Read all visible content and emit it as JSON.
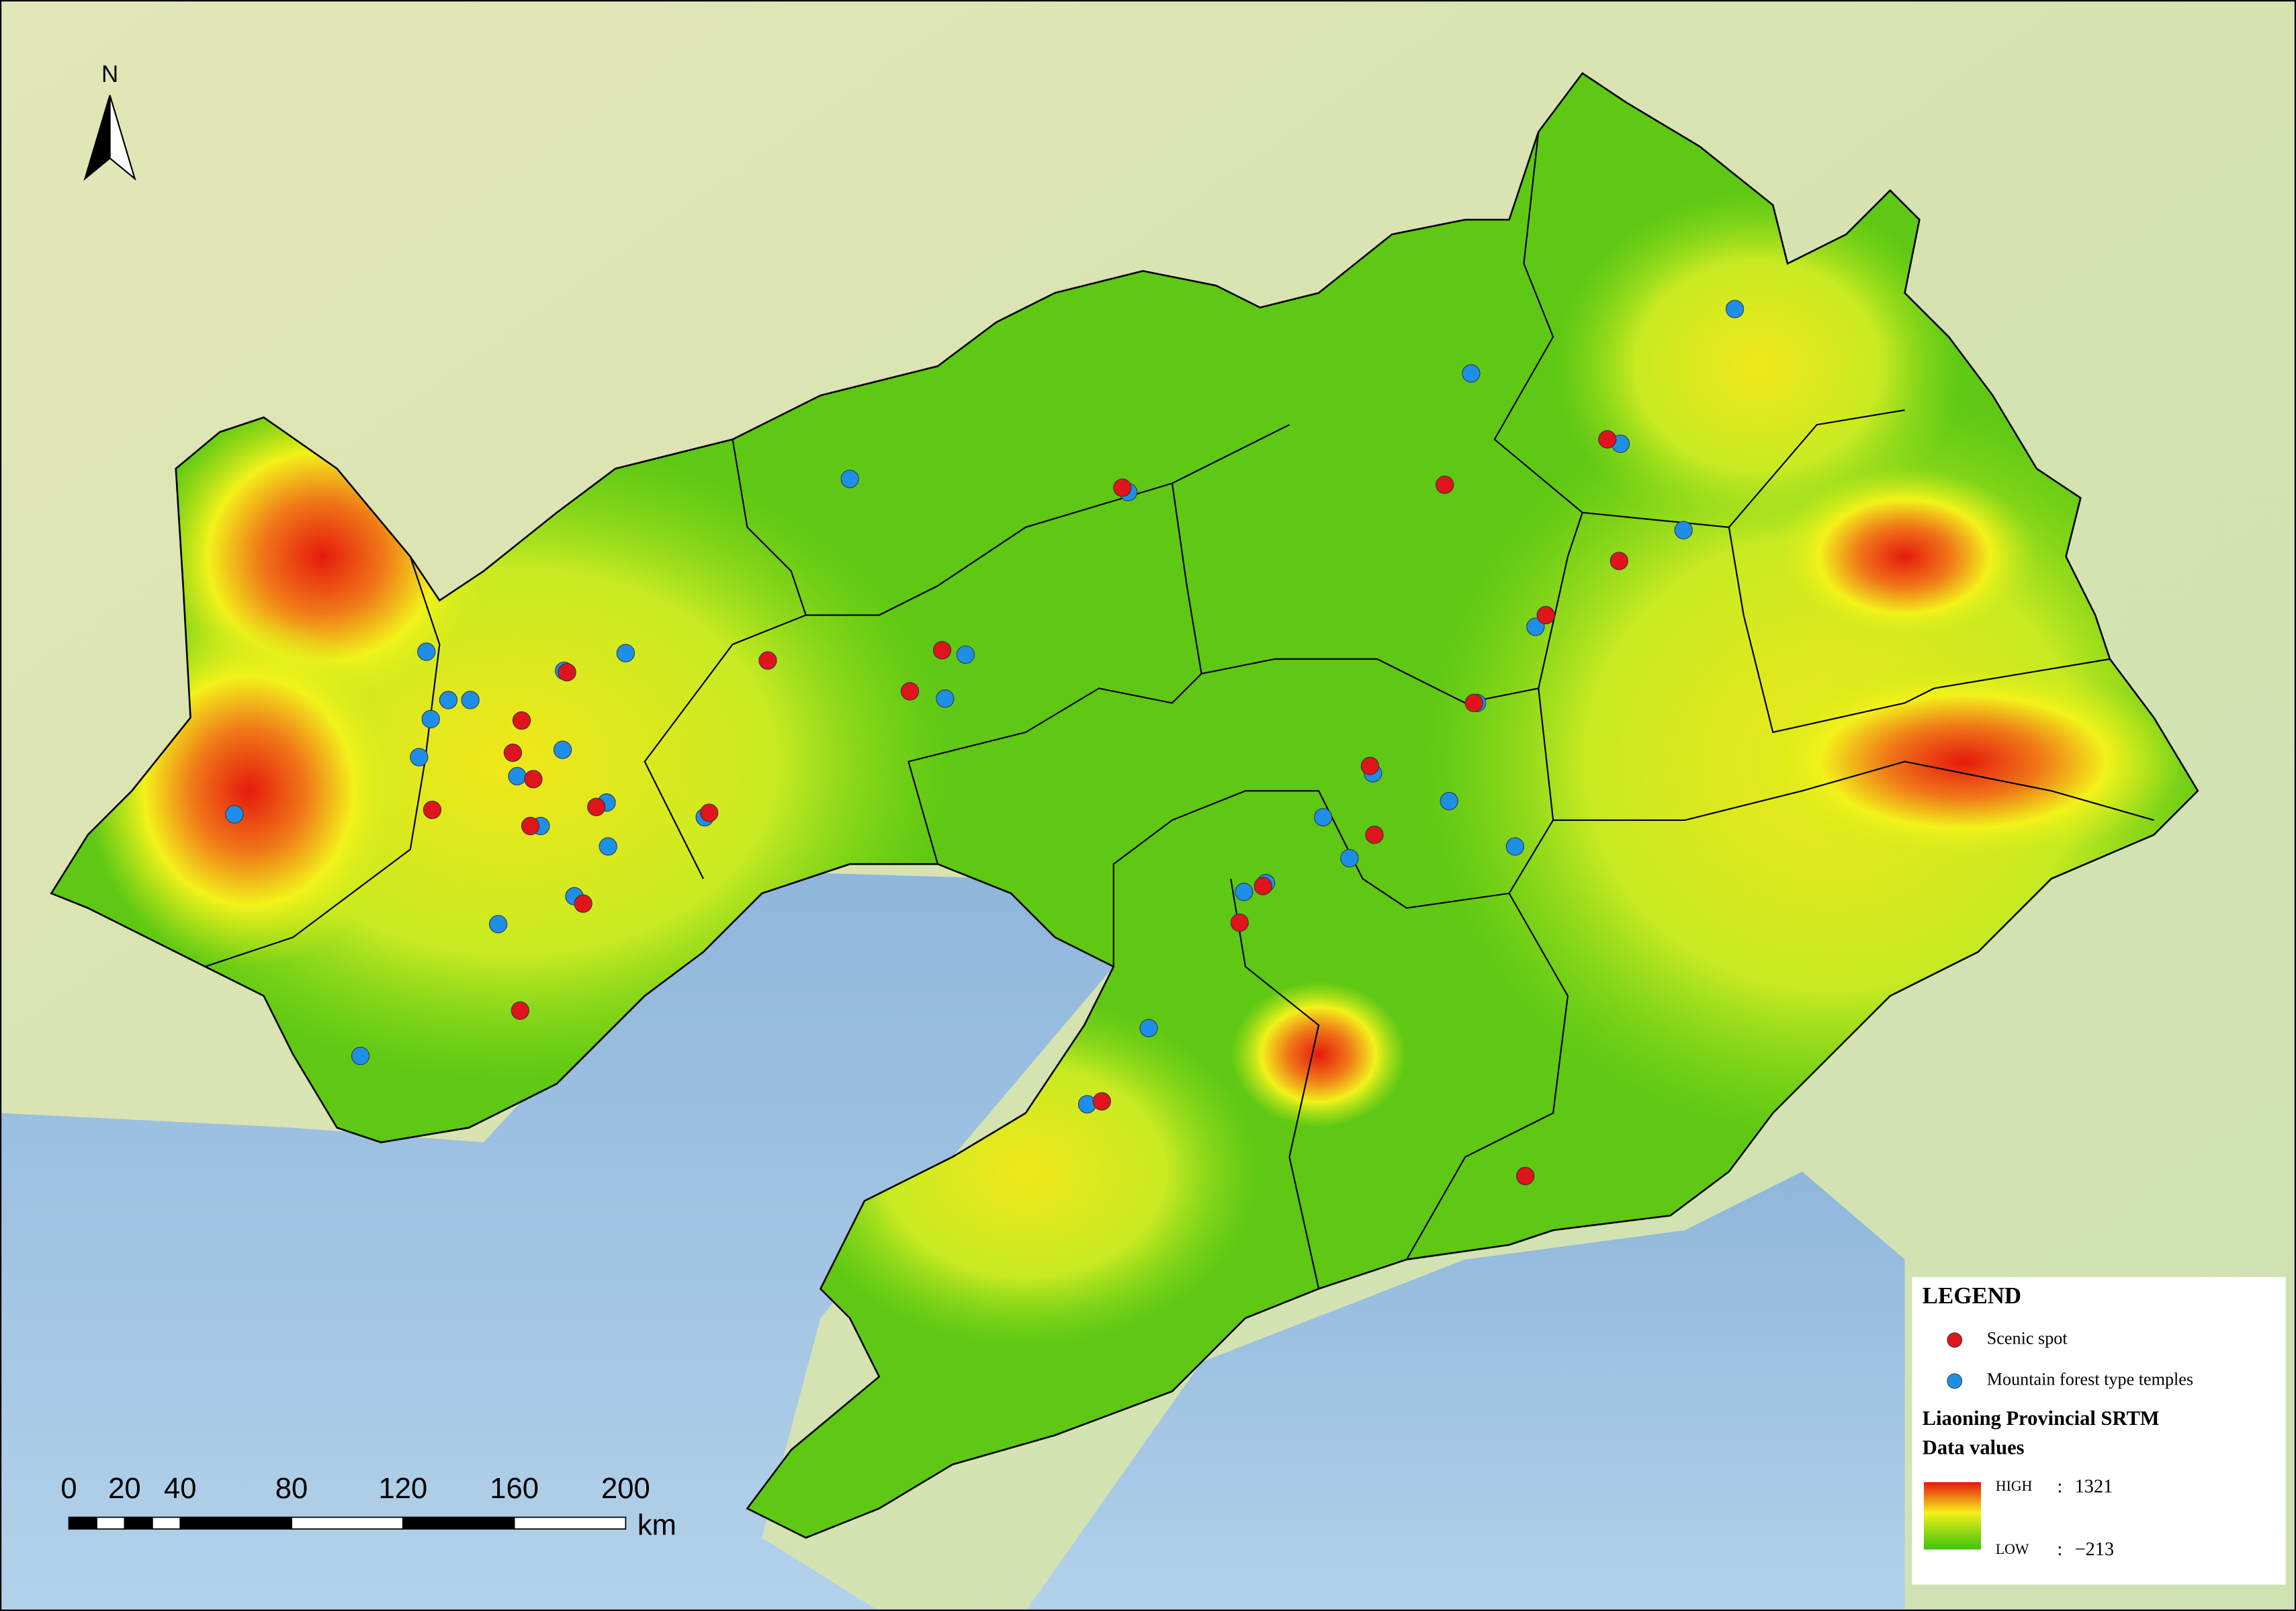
{
  "north": "N",
  "scale_bar": {
    "ticks": [
      0,
      20,
      40,
      80,
      120,
      160,
      200
    ],
    "unit": "km"
  },
  "legend": {
    "title": "LEGEND",
    "items": [
      {
        "label": "Scenic spot",
        "color": "#e0141b"
      },
      {
        "label": "Mountain forest type temples",
        "color": "#1e8fe6"
      }
    ],
    "raster_title": [
      "Liaoning Provincial SRTM",
      "Data values"
    ],
    "high_label": "HIGH",
    "high_value": "1321",
    "low_label": "LOW",
    "low_value": "−213",
    "separator": ":"
  }
}
